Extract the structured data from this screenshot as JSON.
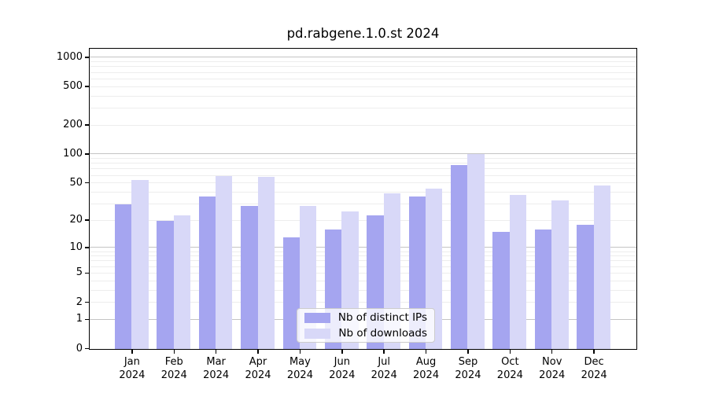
{
  "title": "pd.rabgene.1.0.st 2024",
  "chart_data": {
    "type": "bar",
    "title": "pd.rabgene.1.0.st 2024",
    "categories": [
      "Jan",
      "Feb",
      "Mar",
      "Apr",
      "May",
      "Jun",
      "Jul",
      "Aug",
      "Sep",
      "Oct",
      "Nov",
      "Dec"
    ],
    "category_year": "2024",
    "series": [
      {
        "name": "Nb of distinct IPs",
        "color": "#a5a5f0",
        "values": [
          30,
          20,
          36,
          29,
          13,
          16,
          23,
          36,
          78,
          15,
          16,
          18
        ]
      },
      {
        "name": "Nb of downloads",
        "color": "#d8d8f8",
        "values": [
          54,
          23,
          60,
          58,
          29,
          25,
          39,
          44,
          101,
          38,
          33,
          47
        ]
      }
    ],
    "xlabel": "",
    "ylabel": "",
    "y_ticks": [
      0,
      1,
      2,
      5,
      10,
      20,
      50,
      100,
      200,
      500,
      1000
    ],
    "y_scale": "log10(1+x)",
    "ylim": [
      0,
      1200
    ],
    "grid": true,
    "grid_major_color": "#c4c4c4",
    "grid_minor_color": "#ededed",
    "legend_position": "inside-bottom-center"
  }
}
